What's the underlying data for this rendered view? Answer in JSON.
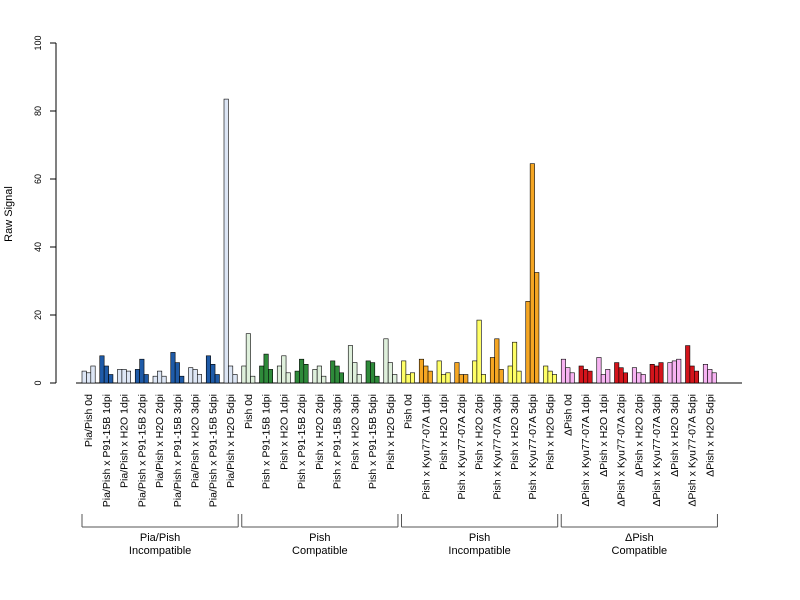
{
  "chart_data": {
    "type": "bar",
    "ylabel": "Raw Signal",
    "ylim": [
      0,
      100
    ],
    "yticks": [
      0,
      20,
      40,
      60,
      80,
      100
    ],
    "categories": [
      "Pia/Pish 0d",
      "Pia/Pish x P91-15B 1dpi",
      "Pia/Pish x H2O 1dpi",
      "Pia/Pish x P91-15B 2dpi",
      "Pia/Pish x H2O 2dpi",
      "Pia/Pish x P91-15B 3dpi",
      "Pia/Pish x H2O 3dpi",
      "Pia/Pish x P91-15B 5dpi",
      "Pia/Pish x H2O 5dpi",
      "Pish 0d",
      "Pish x P91-15B 1dpi",
      "Pish x H2O 1dpi",
      "Pish x P91-15B 2dpi",
      "Pish x H2O 2dpi",
      "Pish x P91-15B 3dpi",
      "Pish x H2O 3dpi",
      "Pish x P91-15B 5dpi",
      "Pish x H2O 5dpi",
      "Pish 0d",
      "Pish x Kyu77-07A 1dpi",
      "Pish x H2O 1dpi",
      "Pish x Kyu77-07A 2dpi",
      "Pish x H2O 2dpi",
      "Pish x Kyu77-07A 3dpi",
      "Pish x H2O 3dpi",
      "Pish x Kyu77-07A 5dpi",
      "Pish x H2O 5dpi",
      "ΔPish 0d",
      "ΔPish x Kyu77-07A 1dpi",
      "ΔPish x H2O 1dpi",
      "ΔPish x Kyu77-07A 2dpi",
      "ΔPish x H2O 2dpi",
      "ΔPish x Kyu77-07A 3dpi",
      "ΔPish x H2O 3dpi",
      "ΔPish x Kyu77-07A 5dpi",
      "ΔPish x H2O 5dpi"
    ],
    "replicates": [
      [
        3.5,
        3.0,
        5.0
      ],
      [
        8.0,
        5.0,
        2.5
      ],
      [
        4.0,
        4.0,
        3.5
      ],
      [
        4.0,
        7.0,
        2.5
      ],
      [
        2.0,
        3.5,
        2.0
      ],
      [
        9.0,
        6.0,
        2.0
      ],
      [
        4.5,
        4.0,
        2.5
      ],
      [
        8.0,
        5.5,
        2.5
      ],
      [
        83.5,
        5.0,
        2.5
      ],
      [
        5.0,
        14.5,
        2.0
      ],
      [
        5.0,
        8.5,
        4.0
      ],
      [
        5.0,
        8.0,
        3.0
      ],
      [
        3.5,
        7.0,
        5.5
      ],
      [
        4.0,
        5.0,
        2.0
      ],
      [
        6.5,
        5.0,
        3.0
      ],
      [
        11.0,
        6.0,
        2.5
      ],
      [
        6.5,
        6.0,
        2.0
      ],
      [
        13.0,
        6.0,
        2.5
      ],
      [
        6.5,
        2.5,
        3.0
      ],
      [
        7.0,
        5.0,
        3.5
      ],
      [
        6.5,
        2.5,
        3.0
      ],
      [
        6.0,
        2.5,
        2.5
      ],
      [
        6.5,
        18.5,
        2.5
      ],
      [
        7.5,
        13.0,
        4.0
      ],
      [
        5.0,
        12.0,
        3.5
      ],
      [
        24.0,
        64.5,
        32.5
      ],
      [
        5.0,
        3.5,
        2.5
      ],
      [
        7.0,
        4.5,
        3.0
      ],
      [
        5.0,
        4.0,
        3.5
      ],
      [
        7.5,
        2.5,
        4.0
      ],
      [
        6.0,
        4.5,
        3.0
      ],
      [
        4.5,
        3.0,
        2.5
      ],
      [
        5.5,
        5.0,
        6.0
      ],
      [
        6.0,
        6.5,
        7.0
      ],
      [
        11.0,
        5.0,
        3.5
      ],
      [
        5.5,
        4.0,
        3.0
      ]
    ],
    "groups": [
      {
        "line1": "Pia/Pish",
        "line2": "Incompatible",
        "start": 0,
        "end": 8,
        "colors": [
          "#dde6f5",
          "#1f5ba8",
          "#dde6f5",
          "#1f5ba8",
          "#dde6f5",
          "#1f5ba8",
          "#dde6f5",
          "#1f5ba8",
          "#dde6f5"
        ]
      },
      {
        "line1": "Pish",
        "line2": "Compatible",
        "start": 9,
        "end": 17,
        "colors": [
          "#dff0dc",
          "#2e8a3a",
          "#dff0dc",
          "#2e8a3a",
          "#dff0dc",
          "#2e8a3a",
          "#dff0dc",
          "#2e8a3a",
          "#dff0dc"
        ]
      },
      {
        "line1": "Pish",
        "line2": "Incompatible",
        "start": 18,
        "end": 26,
        "colors": [
          "#ffff66",
          "#f5a623",
          "#ffff66",
          "#f5a623",
          "#ffff66",
          "#f5a623",
          "#ffff66",
          "#f5a623",
          "#ffff66"
        ]
      },
      {
        "line1": "ΔPish",
        "line2": "Compatible",
        "start": 27,
        "end": 35,
        "colors": [
          "#f7b3f2",
          "#d4141b",
          "#f7b3f2",
          "#d4141b",
          "#f7b3f2",
          "#d4141b",
          "#f7b3f2",
          "#d4141b",
          "#f7b3f2"
        ]
      }
    ],
    "grid": false
  }
}
